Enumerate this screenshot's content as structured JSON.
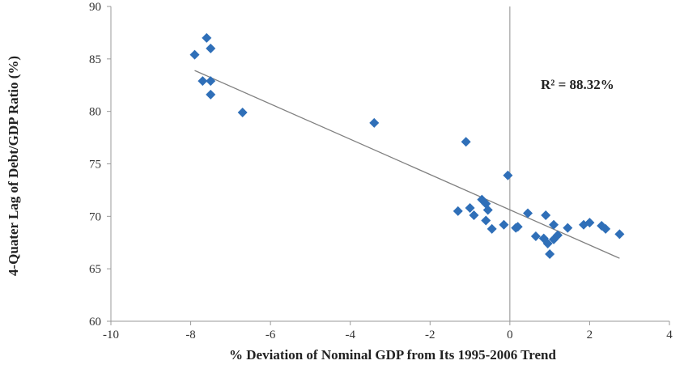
{
  "chart_data": {
    "type": "scatter",
    "title": "",
    "xlabel": "% Deviation of Nominal GDP from Its 1995-2006 Trend",
    "ylabel": "4-Quater Lag of Debt/GDP Ratio (%)",
    "xlim": [
      -10,
      4
    ],
    "ylim": [
      60,
      90
    ],
    "x_ticks": [
      -10,
      -8,
      -6,
      -4,
      -2,
      0,
      2,
      4
    ],
    "y_ticks": [
      60,
      65,
      70,
      75,
      80,
      85,
      90
    ],
    "grid": false,
    "legend": "none",
    "annotation": "R² = 88.32%",
    "series": [
      {
        "marker": "diamond",
        "color": "#2f6fb8",
        "points": [
          {
            "x": -7.9,
            "y": 85.4
          },
          {
            "x": -7.6,
            "y": 87.0
          },
          {
            "x": -7.5,
            "y": 86.0
          },
          {
            "x": -7.7,
            "y": 82.9
          },
          {
            "x": -7.5,
            "y": 82.9
          },
          {
            "x": -7.5,
            "y": 81.6
          },
          {
            "x": -6.7,
            "y": 79.9
          },
          {
            "x": -3.4,
            "y": 78.9
          },
          {
            "x": -1.1,
            "y": 77.1
          },
          {
            "x": -0.05,
            "y": 73.9
          },
          {
            "x": -1.3,
            "y": 70.5
          },
          {
            "x": -1.0,
            "y": 70.8
          },
          {
            "x": -0.9,
            "y": 70.1
          },
          {
            "x": -0.7,
            "y": 71.6
          },
          {
            "x": -0.6,
            "y": 71.2
          },
          {
            "x": -0.55,
            "y": 70.6
          },
          {
            "x": -0.6,
            "y": 69.6
          },
          {
            "x": -0.45,
            "y": 68.8
          },
          {
            "x": -0.15,
            "y": 69.2
          },
          {
            "x": 0.15,
            "y": 68.9
          },
          {
            "x": 0.2,
            "y": 69.0
          },
          {
            "x": 0.45,
            "y": 70.3
          },
          {
            "x": 0.65,
            "y": 68.1
          },
          {
            "x": 0.85,
            "y": 67.9
          },
          {
            "x": 0.9,
            "y": 70.1
          },
          {
            "x": 0.95,
            "y": 67.4
          },
          {
            "x": 1.0,
            "y": 66.4
          },
          {
            "x": 1.1,
            "y": 67.8
          },
          {
            "x": 1.1,
            "y": 69.2
          },
          {
            "x": 1.2,
            "y": 68.2
          },
          {
            "x": 1.45,
            "y": 68.9
          },
          {
            "x": 1.85,
            "y": 69.2
          },
          {
            "x": 2.0,
            "y": 69.4
          },
          {
            "x": 2.3,
            "y": 69.1
          },
          {
            "x": 2.4,
            "y": 68.8
          },
          {
            "x": 2.75,
            "y": 68.3
          }
        ]
      }
    ],
    "trendline": {
      "color": "#808080",
      "points": [
        {
          "x": -7.9,
          "y": 83.9
        },
        {
          "x": 2.75,
          "y": 66.0
        }
      ]
    },
    "vertical_line": {
      "x": 0,
      "color": "#a0a0a0"
    }
  }
}
